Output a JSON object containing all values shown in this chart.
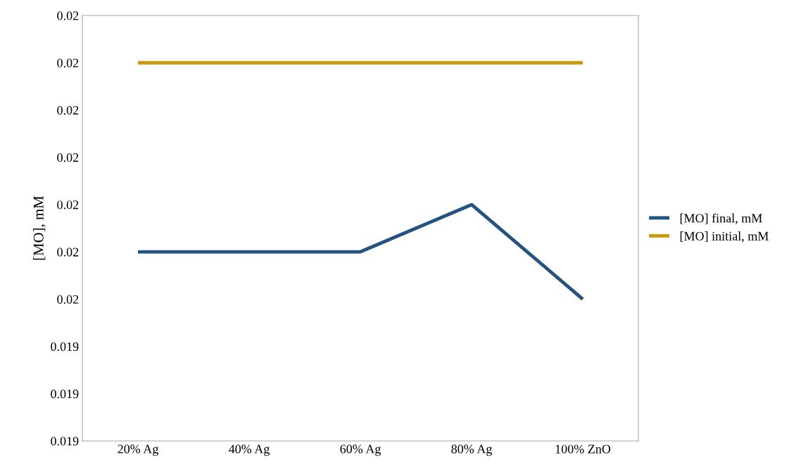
{
  "chart_data": {
    "type": "line",
    "ylabel": "[MO], mM",
    "categories": [
      "20% Ag",
      "40% Ag",
      "60% Ag",
      "80% Ag",
      "100% ZnO"
    ],
    "series": [
      {
        "name": "[MO] final, mM",
        "color": "#255381",
        "values": [
          0.0197,
          0.0197,
          0.0197,
          0.0199,
          0.0195
        ]
      },
      {
        "name": "[MO] initial, mM",
        "color": "#c9990e",
        "values": [
          0.0205,
          0.0205,
          0.0205,
          0.0205,
          0.0205
        ]
      }
    ],
    "ylim": [
      0.0189,
      0.0207
    ],
    "yticks": [
      {
        "value": 0.0189,
        "label": "0.019"
      },
      {
        "value": 0.0191,
        "label": "0.019"
      },
      {
        "value": 0.0193,
        "label": "0.019"
      },
      {
        "value": 0.0195,
        "label": "0.02"
      },
      {
        "value": 0.0197,
        "label": "0.02"
      },
      {
        "value": 0.0199,
        "label": "0.02"
      },
      {
        "value": 0.0201,
        "label": "0.02"
      },
      {
        "value": 0.0203,
        "label": "0.02"
      },
      {
        "value": 0.0205,
        "label": "0.02"
      },
      {
        "value": 0.0207,
        "label": "0.02"
      }
    ],
    "grid": false,
    "legend": "right",
    "marker": "none",
    "line_style": "solid"
  }
}
